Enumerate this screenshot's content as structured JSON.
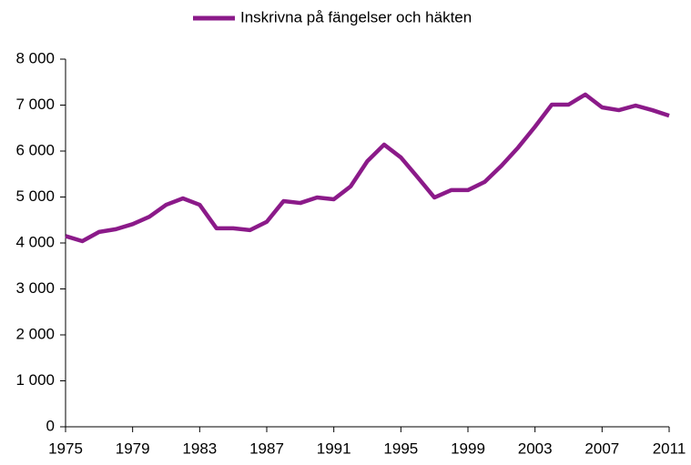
{
  "chart_data": {
    "type": "line",
    "x": [
      1975,
      1976,
      1977,
      1978,
      1979,
      1980,
      1981,
      1982,
      1983,
      1984,
      1985,
      1986,
      1987,
      1988,
      1989,
      1990,
      1991,
      1992,
      1993,
      1994,
      1995,
      1996,
      1997,
      1998,
      1999,
      2000,
      2001,
      2002,
      2003,
      2004,
      2005,
      2006,
      2007,
      2008,
      2009,
      2010,
      2011
    ],
    "series": [
      {
        "name": "Inskrivna på fängelser och häkten",
        "color": "#8b1a89",
        "values": [
          4150,
          4040,
          4240,
          4300,
          4410,
          4570,
          4830,
          4970,
          4830,
          4320,
          4320,
          4280,
          4460,
          4910,
          4870,
          4990,
          4950,
          5230,
          5780,
          6140,
          5860,
          5430,
          4990,
          5150,
          5150,
          5330,
          5680,
          6080,
          6530,
          7010,
          7010,
          7230,
          6950,
          6890,
          6990,
          6890,
          6770
        ]
      }
    ],
    "xlim": [
      1975,
      2011
    ],
    "xticks": [
      1975,
      1979,
      1983,
      1987,
      1991,
      1995,
      1999,
      2003,
      2007,
      2011
    ],
    "ylim": [
      0,
      8000
    ],
    "yticks": [
      0,
      {
        "value": 1000,
        "label": "1 000"
      },
      {
        "value": 2000,
        "label": "2 000"
      },
      {
        "value": 3000,
        "label": "3 000"
      },
      {
        "value": 4000,
        "label": "4 000"
      },
      {
        "value": 5000,
        "label": "5 000"
      },
      {
        "value": 6000,
        "label": "6 000"
      },
      {
        "value": 7000,
        "label": "7 000"
      },
      {
        "value": 8000,
        "label": "8 000"
      }
    ],
    "legend": "top",
    "grid": false
  }
}
